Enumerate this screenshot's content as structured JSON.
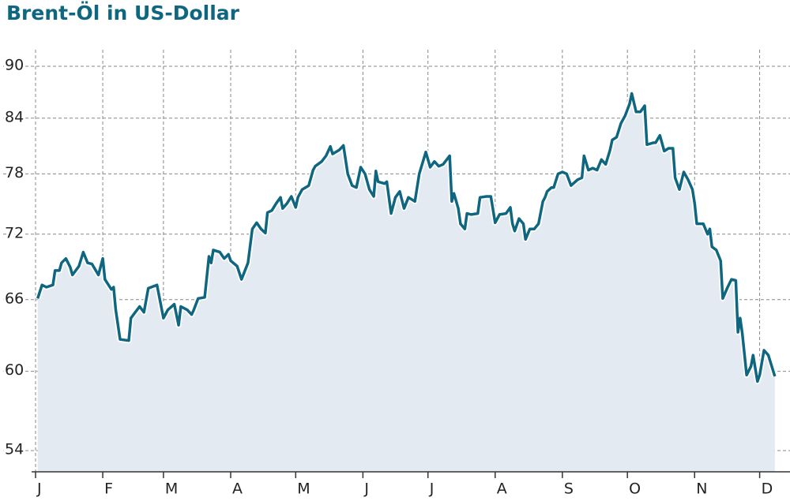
{
  "chart_data": {
    "type": "line",
    "title": "Brent-Öl in US-Dollar",
    "x": [
      1,
      3,
      5,
      8,
      9,
      11,
      12,
      14,
      16,
      17,
      20,
      22,
      24,
      26,
      29,
      31,
      32,
      35,
      36,
      37,
      39,
      43,
      44,
      46,
      48,
      50,
      52,
      56,
      59,
      61,
      64,
      66,
      67,
      70,
      72,
      73,
      75,
      78,
      80,
      81,
      82,
      85,
      87,
      89,
      90,
      93,
      95,
      98,
      100,
      102,
      104,
      106,
      107,
      109,
      111,
      113,
      114,
      116,
      118,
      120,
      121,
      123,
      126,
      128,
      129,
      132,
      134,
      136,
      137,
      140,
      142,
      144,
      146,
      148,
      150,
      152,
      154,
      156,
      157,
      158,
      161,
      162,
      164,
      166,
      168,
      170,
      172,
      175,
      177,
      180,
      182,
      184,
      186,
      188,
      191,
      192,
      193,
      195,
      196,
      198,
      199,
      201,
      204,
      205,
      208,
      210,
      212,
      214,
      217,
      219,
      220,
      221,
      223,
      225,
      226,
      228,
      230,
      232,
      234,
      235,
      236,
      238,
      239,
      241,
      243,
      245,
      247,
      250,
      252,
      253,
      255,
      257,
      259,
      261,
      263,
      265,
      266,
      268,
      270,
      272,
      274,
      275,
      277,
      279,
      281,
      282,
      285,
      286,
      288,
      290,
      292,
      294,
      295,
      297,
      299,
      301,
      303,
      304,
      305,
      308,
      310,
      311,
      312,
      314,
      316,
      317,
      319,
      321,
      323,
      324,
      325,
      326,
      328,
      330,
      331,
      333,
      334,
      336,
      338,
      341
    ],
    "series": [
      {
        "name": "Brent",
        "color": "#0f6680",
        "values": [
          66.1,
          67.3,
          67.1,
          67.3,
          68.6,
          68.6,
          69.3,
          69.7,
          68.9,
          68.2,
          69.0,
          70.3,
          69.3,
          69.2,
          68.2,
          69.7,
          67.8,
          66.9,
          67.1,
          65.1,
          62.6,
          62.5,
          64.4,
          64.9,
          65.4,
          64.9,
          67.0,
          67.3,
          64.4,
          65.1,
          65.6,
          63.8,
          65.4,
          65.1,
          64.7,
          65.1,
          66.1,
          66.2,
          69.9,
          69.3,
          70.5,
          70.3,
          69.7,
          70.1,
          69.5,
          69.0,
          67.8,
          69.3,
          72.5,
          73.1,
          72.5,
          72.1,
          74.1,
          74.3,
          75.0,
          75.6,
          74.5,
          75.0,
          75.7,
          74.6,
          75.6,
          76.4,
          76.8,
          78.4,
          78.8,
          79.3,
          79.9,
          80.9,
          80.1,
          80.5,
          81.0,
          78.0,
          76.8,
          76.6,
          78.7,
          78.0,
          76.4,
          75.7,
          78.3,
          77.2,
          77.0,
          77.2,
          74.0,
          75.6,
          76.2,
          74.5,
          75.6,
          75.2,
          78.0,
          80.3,
          78.7,
          79.3,
          78.8,
          79.0,
          79.9,
          75.2,
          76.0,
          74.5,
          73.0,
          72.5,
          74.0,
          73.9,
          74.0,
          75.6,
          75.7,
          75.7,
          73.1,
          73.9,
          74.0,
          74.6,
          73.0,
          72.3,
          73.5,
          73.0,
          71.5,
          72.5,
          72.5,
          73.0,
          75.2,
          75.6,
          76.2,
          76.6,
          76.6,
          78.0,
          78.2,
          78.0,
          76.8,
          77.4,
          77.6,
          79.9,
          78.4,
          78.6,
          78.4,
          79.5,
          79.0,
          80.5,
          81.6,
          81.9,
          83.4,
          84.3,
          85.6,
          86.8,
          84.7,
          84.7,
          85.4,
          81.1,
          81.3,
          81.3,
          82.1,
          80.4,
          80.7,
          80.7,
          77.6,
          76.4,
          78.2,
          77.4,
          76.4,
          75.0,
          73.0,
          73.0,
          72.0,
          72.5,
          70.8,
          70.5,
          69.5,
          66.1,
          67.0,
          67.8,
          67.7,
          63.2,
          64.4,
          63.1,
          59.7,
          60.4,
          61.3,
          59.2,
          59.7,
          61.7,
          61.3,
          59.6
        ]
      }
    ],
    "xlim": [
      0,
      348
    ],
    "xticks": [
      {
        "value": 0,
        "label": "J"
      },
      {
        "value": 31,
        "label": "F"
      },
      {
        "value": 59,
        "label": "M"
      },
      {
        "value": 90,
        "label": "A"
      },
      {
        "value": 120,
        "label": "M"
      },
      {
        "value": 151,
        "label": "J"
      },
      {
        "value": 181,
        "label": "J"
      },
      {
        "value": 212,
        "label": "A"
      },
      {
        "value": 243,
        "label": "S"
      },
      {
        "value": 273,
        "label": "O"
      },
      {
        "value": 304,
        "label": "N"
      },
      {
        "value": 334,
        "label": "D"
      }
    ],
    "ylim": [
      52.5,
      92
    ],
    "yticks": [
      54,
      60,
      66,
      72,
      78,
      84,
      90
    ],
    "log_y": true,
    "grid": true,
    "area_color": "#e4eaf2"
  }
}
